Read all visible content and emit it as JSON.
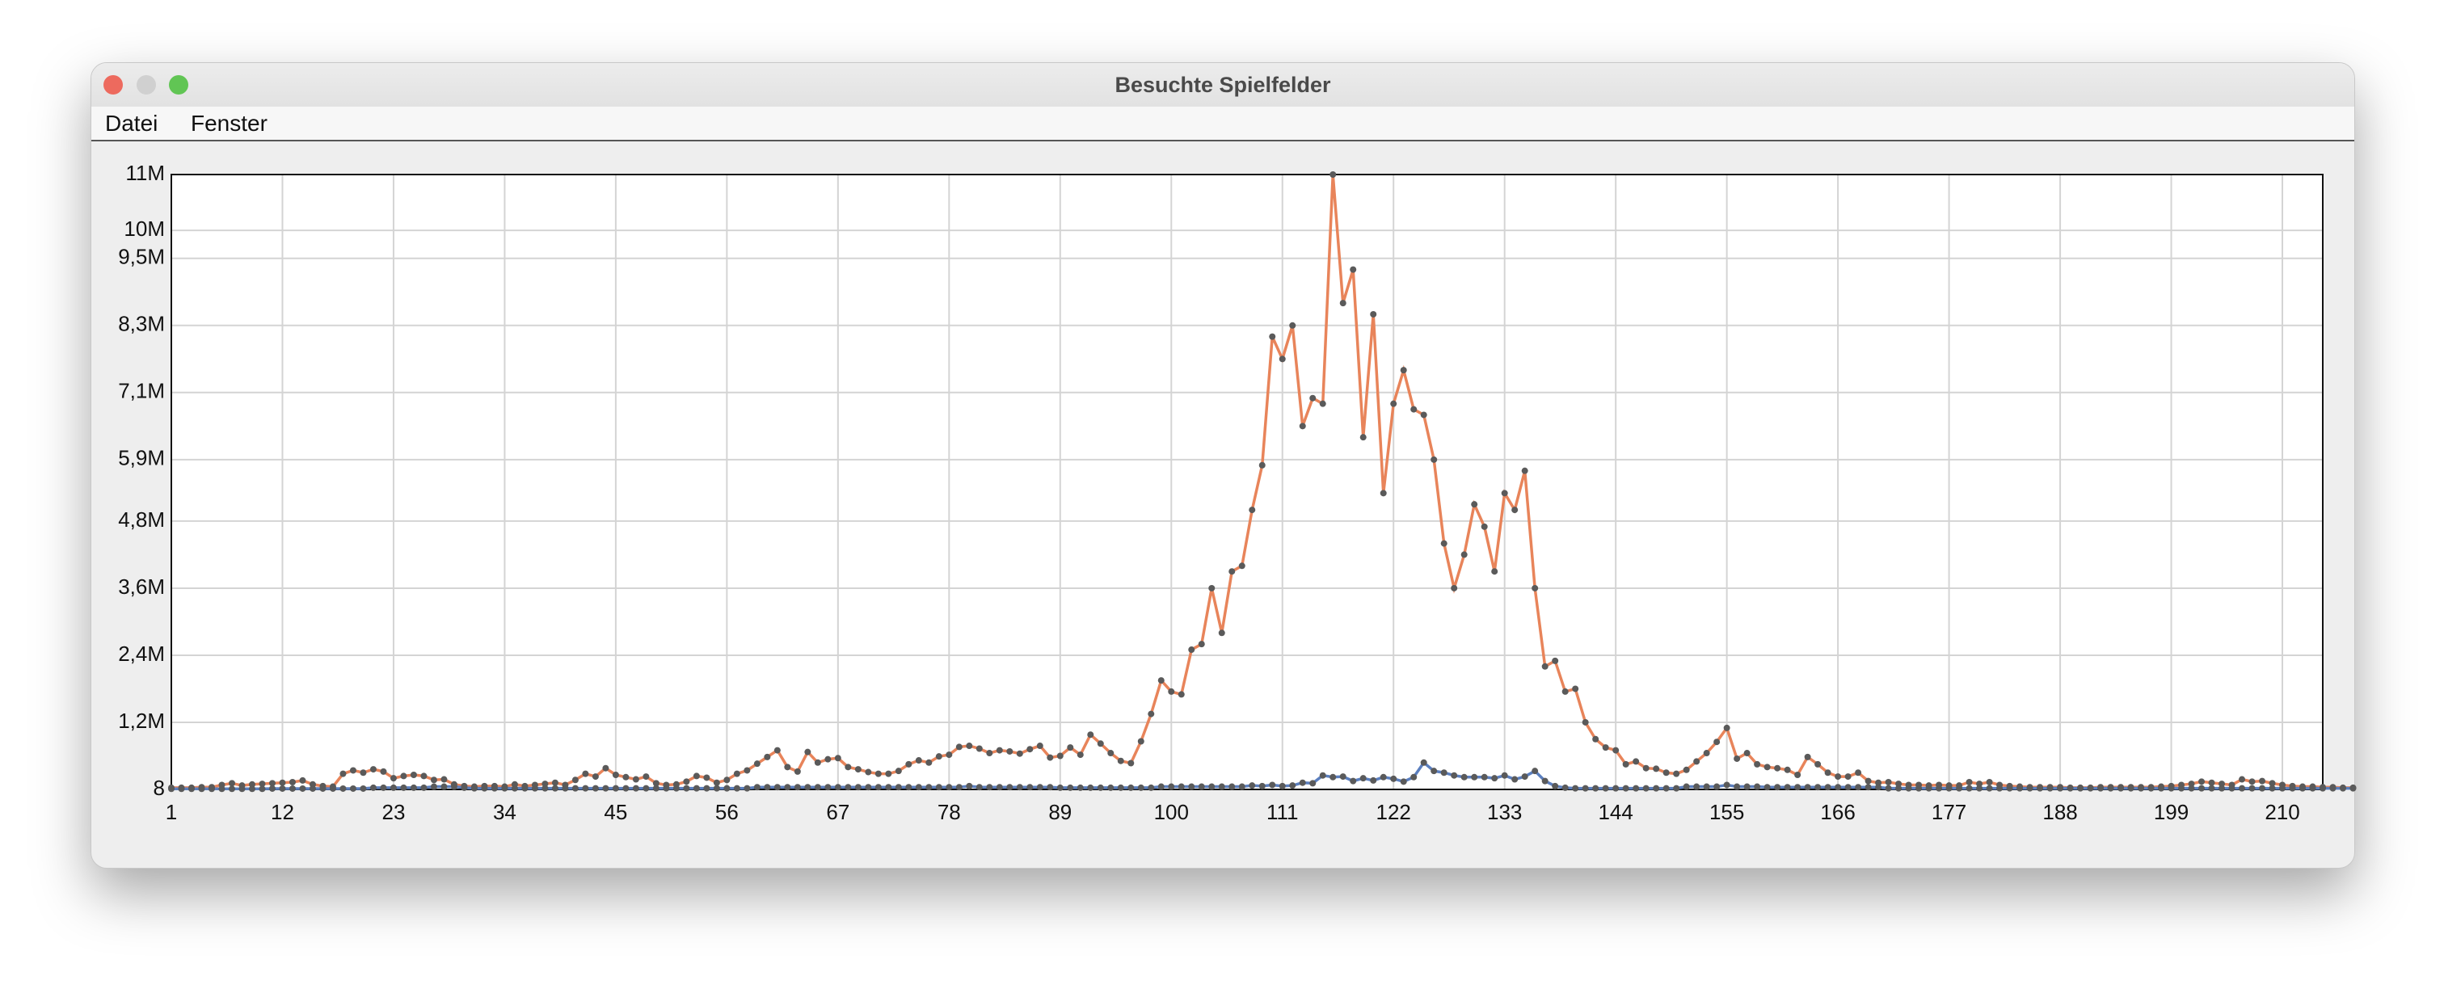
{
  "window": {
    "title": "Besuchte Spielfelder",
    "menu": [
      "Datei",
      "Fenster"
    ]
  },
  "chart_data": {
    "type": "line",
    "grid": true,
    "xlim": [
      1,
      214
    ],
    "xticks": [
      1,
      12,
      23,
      34,
      45,
      56,
      67,
      78,
      89,
      100,
      111,
      122,
      133,
      144,
      155,
      166,
      177,
      188,
      199,
      210
    ],
    "ylim": [
      8,
      11000000
    ],
    "yticks": [
      8,
      {
        "value": 1200000,
        "label": "1,2M"
      },
      {
        "value": 2400000,
        "label": "2,4M"
      },
      {
        "value": 3600000,
        "label": "3,6M"
      },
      {
        "value": 4800000,
        "label": "4,8M"
      },
      {
        "value": 5900000,
        "label": "5,9M"
      },
      {
        "value": 7100000,
        "label": "7,1M"
      },
      {
        "value": 8300000,
        "label": "8,3M"
      },
      {
        "value": 9500000,
        "label": "9,5M"
      },
      {
        "value": 10000000,
        "label": "10M"
      },
      {
        "value": 11000000,
        "label": "11M"
      }
    ],
    "marker_color": "#5a5a5a",
    "x": [
      1,
      2,
      3,
      4,
      5,
      6,
      7,
      8,
      9,
      10,
      11,
      12,
      13,
      14,
      15,
      16,
      17,
      18,
      19,
      20,
      21,
      22,
      23,
      24,
      25,
      26,
      27,
      28,
      29,
      30,
      31,
      32,
      33,
      34,
      35,
      36,
      37,
      38,
      39,
      40,
      41,
      42,
      43,
      44,
      45,
      46,
      47,
      48,
      49,
      50,
      51,
      52,
      53,
      54,
      55,
      56,
      57,
      58,
      59,
      60,
      61,
      62,
      63,
      64,
      65,
      66,
      67,
      68,
      69,
      70,
      71,
      72,
      73,
      74,
      75,
      76,
      77,
      78,
      79,
      80,
      81,
      82,
      83,
      84,
      85,
      86,
      87,
      88,
      89,
      90,
      91,
      92,
      93,
      94,
      95,
      96,
      97,
      98,
      99,
      100,
      101,
      102,
      103,
      104,
      105,
      106,
      107,
      108,
      109,
      110,
      111,
      112,
      113,
      114,
      115,
      116,
      117,
      118,
      119,
      120,
      121,
      122,
      123,
      124,
      125,
      126,
      127,
      128,
      129,
      130,
      131,
      132,
      133,
      134,
      135,
      136,
      137,
      138,
      139,
      140,
      141,
      142,
      143,
      144,
      145,
      146,
      147,
      148,
      149,
      150,
      151,
      152,
      153,
      154,
      155,
      156,
      157,
      158,
      159,
      160,
      161,
      162,
      163,
      164,
      165,
      166,
      167,
      168,
      169,
      170,
      171,
      172,
      173,
      174,
      175,
      176,
      177,
      178,
      179,
      180,
      181,
      182,
      183,
      184,
      185,
      186,
      187,
      188,
      189,
      190,
      191,
      192,
      193,
      194,
      195,
      196,
      197,
      198,
      199,
      200,
      201,
      202,
      203,
      204,
      205,
      206,
      207,
      208,
      209,
      210,
      211,
      212,
      213,
      214,
      215,
      216,
      217
    ],
    "series": [
      {
        "color": "#e8845a",
        "values": [
          30000,
          30000,
          30000,
          40000,
          40000,
          80000,
          110000,
          70000,
          90000,
          100000,
          110000,
          120000,
          130000,
          160000,
          90000,
          60000,
          50000,
          280000,
          340000,
          300000,
          360000,
          320000,
          200000,
          240000,
          260000,
          240000,
          170000,
          180000,
          90000,
          60000,
          50000,
          60000,
          60000,
          50000,
          90000,
          60000,
          80000,
          100000,
          120000,
          80000,
          170000,
          280000,
          230000,
          380000,
          260000,
          220000,
          180000,
          230000,
          110000,
          80000,
          90000,
          140000,
          240000,
          210000,
          120000,
          170000,
          280000,
          340000,
          460000,
          580000,
          700000,
          400000,
          320000,
          670000,
          480000,
          540000,
          560000,
          400000,
          360000,
          310000,
          280000,
          280000,
          330000,
          450000,
          520000,
          480000,
          590000,
          620000,
          760000,
          780000,
          730000,
          650000,
          700000,
          680000,
          640000,
          720000,
          780000,
          570000,
          600000,
          750000,
          620000,
          980000,
          820000,
          650000,
          510000,
          470000,
          860000,
          1350000,
          1950000,
          1750000,
          1700000,
          2500000,
          2600000,
          3600000,
          2800000,
          3900000,
          4000000,
          5000000,
          5800000,
          8100000,
          7700000,
          8300000,
          6500000,
          7000000,
          6900000,
          11000000,
          8700000,
          9300000,
          6300000,
          8500000,
          5300000,
          6900000,
          7500000,
          6800000,
          6700000,
          5900000,
          4400000,
          3600000,
          4200000,
          5100000,
          4700000,
          3900000,
          5300000,
          5000000,
          5700000,
          3600000,
          2200000,
          2300000,
          1750000,
          1800000,
          1200000,
          900000,
          750000,
          700000,
          450000,
          500000,
          380000,
          370000,
          300000,
          280000,
          350000,
          500000,
          650000,
          850000,
          1100000,
          550000,
          650000,
          450000,
          400000,
          380000,
          350000,
          260000,
          580000,
          450000,
          300000,
          230000,
          230000,
          300000,
          150000,
          120000,
          130000,
          100000,
          80000,
          80000,
          70000,
          80000,
          70000,
          70000,
          130000,
          100000,
          130000,
          80000,
          60000,
          50000,
          40000,
          40000,
          40000,
          40000,
          30000,
          30000,
          30000,
          40000,
          40000,
          40000,
          40000,
          40000,
          40000,
          50000,
          60000,
          80000,
          100000,
          140000,
          120000,
          100000,
          80000,
          180000,
          140000,
          150000,
          110000,
          80000,
          60000,
          50000,
          50000,
          40000,
          40000,
          30000,
          30000
        ]
      },
      {
        "color": "#5b7fbf",
        "values": [
          10000,
          10000,
          10000,
          10000,
          10000,
          10000,
          10000,
          10000,
          10000,
          10000,
          15000,
          15000,
          15000,
          15000,
          15000,
          15000,
          15000,
          15000,
          15000,
          15000,
          30000,
          30000,
          30000,
          30000,
          30000,
          30000,
          50000,
          50000,
          50000,
          30000,
          20000,
          20000,
          20000,
          20000,
          20000,
          20000,
          20000,
          20000,
          20000,
          20000,
          20000,
          20000,
          20000,
          20000,
          20000,
          20000,
          20000,
          20000,
          20000,
          20000,
          20000,
          20000,
          20000,
          20000,
          20000,
          20000,
          20000,
          20000,
          40000,
          40000,
          40000,
          40000,
          40000,
          40000,
          40000,
          40000,
          40000,
          40000,
          40000,
          40000,
          40000,
          40000,
          40000,
          40000,
          40000,
          40000,
          40000,
          40000,
          40000,
          60000,
          40000,
          40000,
          40000,
          40000,
          40000,
          40000,
          40000,
          40000,
          30000,
          30000,
          30000,
          30000,
          30000,
          30000,
          30000,
          30000,
          30000,
          30000,
          50000,
          50000,
          50000,
          50000,
          50000,
          50000,
          50000,
          50000,
          50000,
          70000,
          60000,
          80000,
          60000,
          70000,
          120000,
          110000,
          250000,
          220000,
          230000,
          150000,
          200000,
          160000,
          220000,
          190000,
          140000,
          220000,
          480000,
          330000,
          300000,
          250000,
          220000,
          220000,
          220000,
          200000,
          250000,
          180000,
          230000,
          330000,
          150000,
          60000,
          30000,
          20000,
          20000,
          20000,
          20000,
          20000,
          20000,
          20000,
          20000,
          20000,
          20000,
          20000,
          50000,
          50000,
          50000,
          50000,
          80000,
          50000,
          50000,
          50000,
          40000,
          40000,
          40000,
          40000,
          40000,
          40000,
          40000,
          40000,
          40000,
          40000,
          40000,
          40000,
          20000,
          20000,
          20000,
          20000,
          20000,
          20000,
          20000,
          20000,
          20000,
          20000,
          20000,
          20000,
          20000,
          20000,
          20000,
          20000,
          20000,
          20000,
          20000,
          20000,
          20000,
          20000,
          20000,
          20000,
          20000,
          20000,
          20000,
          20000,
          20000,
          20000,
          20000,
          20000,
          20000,
          20000,
          20000,
          20000,
          20000,
          20000,
          20000,
          20000,
          20000,
          20000,
          20000,
          20000,
          20000,
          20000,
          20000
        ]
      }
    ]
  }
}
